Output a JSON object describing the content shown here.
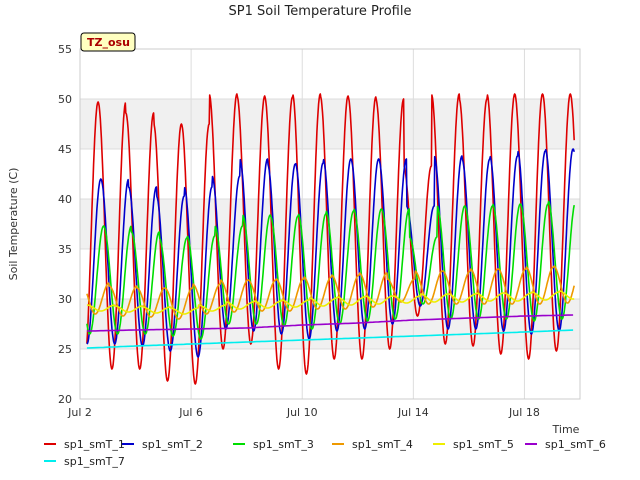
{
  "chart_data": {
    "type": "line",
    "title": "SP1 Soil Temperature Profile",
    "xlabel": "Time",
    "ylabel": "Soil Temperature (C)",
    "annotation": "TZ_osu",
    "xlim_days": [
      2.0,
      20.0
    ],
    "ylim": [
      20,
      55
    ],
    "x_ticks": [
      {
        "day": 2,
        "label": "Jul 2"
      },
      {
        "day": 6,
        "label": "Jul 6"
      },
      {
        "day": 10,
        "label": "Jul 10"
      },
      {
        "day": 14,
        "label": "Jul 14"
      },
      {
        "day": 18,
        "label": "Jul 18"
      }
    ],
    "y_ticks": [
      20,
      25,
      30,
      35,
      40,
      45,
      50,
      55
    ],
    "grid": true,
    "background_bands": "alternating gray bands",
    "legend_position": "bottom",
    "data_range_days": [
      2.25,
      19.8
    ],
    "series": [
      {
        "name": "sp1_smT_1",
        "color": "#dd0000",
        "style": "daily_cycle",
        "peak_phase": 0.65,
        "daily_max": [
          49.7,
          48.6,
          47.5,
          47.5,
          50.5,
          50.3,
          50.2,
          50.5,
          50.3,
          50.2,
          50.0,
          43.3,
          50.5,
          50.0,
          50.5,
          50.5,
          50.5,
          50.5
        ],
        "daily_min": [
          23.0,
          23.0,
          21.8,
          21.5,
          25.0,
          25.5,
          23.0,
          22.5,
          24.0,
          24.0,
          25.0,
          28.3,
          25.5,
          25.3,
          24.5,
          24.0,
          24.8,
          25.0
        ]
      },
      {
        "name": "sp1_smT_2",
        "color": "#0000cc",
        "style": "daily_cycle",
        "peak_phase": 0.75,
        "daily_max": [
          42.0,
          41.2,
          40.3,
          41.2,
          42.3,
          44.0,
          43.5,
          43.6,
          44.0,
          44.0,
          44.0,
          39.3,
          44.3,
          44.0,
          44.3,
          44.8,
          45.0,
          45.0
        ],
        "daily_min": [
          25.5,
          25.3,
          24.8,
          24.2,
          27.0,
          26.8,
          26.5,
          26.0,
          26.8,
          27.0,
          27.5,
          29.3,
          27.0,
          27.0,
          26.8,
          26.5,
          26.8,
          27.0
        ]
      },
      {
        "name": "sp1_smT_3",
        "color": "#00dd00",
        "style": "daily_cycle",
        "peak_phase": 0.85,
        "daily_max": [
          37.3,
          36.7,
          36.1,
          36.3,
          37.3,
          38.4,
          38.3,
          38.5,
          38.8,
          39.0,
          39.0,
          36.2,
          39.3,
          39.3,
          39.5,
          39.5,
          39.8,
          39.8
        ],
        "daily_min": [
          26.5,
          26.5,
          26.3,
          26.0,
          27.5,
          27.5,
          27.3,
          27.0,
          27.5,
          27.8,
          28.0,
          29.5,
          28.0,
          28.0,
          28.0,
          27.8,
          28.0,
          28.0
        ]
      },
      {
        "name": "sp1_smT_4",
        "color": "#ee9900",
        "style": "daily_cycle",
        "peak_phase": 0.05,
        "daily_max": [
          31.6,
          31.3,
          31.1,
          31.1,
          31.5,
          31.9,
          31.9,
          32.0,
          32.2,
          32.4,
          32.6,
          32.0,
          32.8,
          32.8,
          33.0,
          33.0,
          33.2,
          33.3
        ],
        "daily_min": [
          28.5,
          28.3,
          28.2,
          28.0,
          28.5,
          28.7,
          28.8,
          28.8,
          29.0,
          29.0,
          29.2,
          29.7,
          29.5,
          29.5,
          29.5,
          29.5,
          29.5,
          29.6
        ]
      },
      {
        "name": "sp1_smT_5",
        "color": "#eeee00",
        "style": "daily_cycle",
        "peak_phase": 0.25,
        "daily_max": [
          29.4,
          29.3,
          29.2,
          29.1,
          29.4,
          29.7,
          29.8,
          29.9,
          30.1,
          30.2,
          30.3,
          30.3,
          30.5,
          30.5,
          30.6,
          30.6,
          30.7,
          30.8
        ],
        "daily_min": [
          28.8,
          28.7,
          28.6,
          28.5,
          28.8,
          29.0,
          29.1,
          29.2,
          29.3,
          29.4,
          29.5,
          29.6,
          29.7,
          29.7,
          29.8,
          29.8,
          29.9,
          30.0
        ]
      },
      {
        "name": "sp1_smT_6",
        "color": "#9900cc",
        "style": "smooth",
        "x": [
          2.3,
          4,
          6,
          8,
          10,
          12,
          14,
          16,
          18,
          19.8
        ],
        "y": [
          26.8,
          26.9,
          27.0,
          27.1,
          27.4,
          27.6,
          27.9,
          28.1,
          28.3,
          28.4
        ]
      },
      {
        "name": "sp1_smT_7",
        "color": "#00eeee",
        "style": "smooth",
        "x": [
          2.3,
          4,
          6,
          8,
          10,
          12,
          14,
          16,
          18,
          19.8
        ],
        "y": [
          25.1,
          25.3,
          25.5,
          25.7,
          25.9,
          26.1,
          26.3,
          26.5,
          26.7,
          26.9
        ]
      }
    ]
  }
}
